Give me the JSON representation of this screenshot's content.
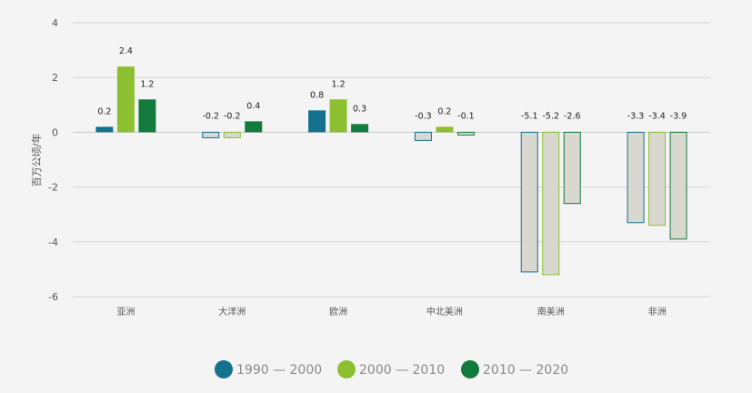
{
  "chart_data": {
    "type": "bar",
    "ylabel": "百万公顷/年",
    "ylim": [
      -6,
      4
    ],
    "yticks": [
      4,
      2,
      0,
      -2,
      -4,
      -6
    ],
    "ytick_labels": [
      "4",
      "2",
      "0",
      "-2",
      "-4",
      "-6"
    ],
    "grid": true,
    "legend_position": "bottom-center",
    "categories": [
      "亚洲",
      "大洋洲",
      "欧洲",
      "中北美洲",
      "南美洲",
      "非洲"
    ],
    "series": [
      {
        "name": "1990 — 2000",
        "color": "#14728f",
        "values": [
          0.2,
          -0.2,
          0.8,
          -0.3,
          -5.1,
          -3.3
        ]
      },
      {
        "name": "2000 — 2010",
        "color": "#8cc031",
        "values": [
          2.4,
          -0.2,
          1.2,
          0.2,
          -5.2,
          -3.4
        ]
      },
      {
        "name": "2010 — 2020",
        "color": "#137a3e",
        "values": [
          1.2,
          0.4,
          0.3,
          -0.1,
          -2.6,
          -3.9
        ]
      }
    ],
    "negative_fill": "#d9d8d0"
  }
}
